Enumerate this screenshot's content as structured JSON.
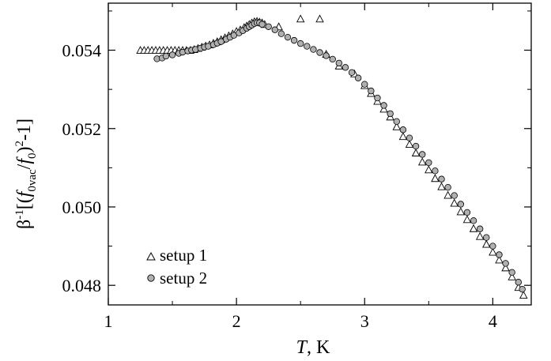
{
  "chart_data": {
    "type": "scatter",
    "xlabel": "T, K",
    "ylabel": "β-1[(f0vac/f0)2-1]",
    "xlim": [
      1.0,
      4.3
    ],
    "ylim": [
      0.0475,
      0.0552
    ],
    "xticks": [
      1,
      2,
      3,
      4
    ],
    "xtick_labels": [
      "1",
      "2",
      "3",
      "4"
    ],
    "yticks": [
      0.048,
      0.05,
      0.052,
      0.054
    ],
    "ytick_labels": [
      "0.048",
      "0.050",
      "0.052",
      "0.054"
    ],
    "grid": false,
    "legend_position": "lower-left",
    "series": [
      {
        "name": "setup 1",
        "marker": "triangle-open",
        "color": "#000000",
        "x": [
          1.25,
          1.28,
          1.31,
          1.34,
          1.37,
          1.4,
          1.43,
          1.46,
          1.49,
          1.52,
          1.55,
          1.58,
          1.61,
          1.64,
          1.67,
          1.7,
          1.73,
          1.76,
          1.79,
          1.82,
          1.85,
          1.88,
          1.91,
          1.94,
          1.97,
          2.0,
          2.03,
          2.06,
          2.08,
          2.1,
          2.12,
          2.14,
          2.16,
          2.18,
          2.2,
          2.22,
          2.33,
          2.5,
          2.65,
          2.7,
          2.8,
          2.92,
          3.0,
          3.05,
          3.1,
          3.15,
          3.2,
          3.25,
          3.3,
          3.35,
          3.4,
          3.45,
          3.5,
          3.55,
          3.6,
          3.65,
          3.7,
          3.75,
          3.8,
          3.85,
          3.9,
          3.95,
          4.0,
          4.05,
          4.1,
          4.15,
          4.2,
          4.24
        ],
        "y": [
          0.054,
          0.054,
          0.054,
          0.054,
          0.054,
          0.054,
          0.054,
          0.054,
          0.054,
          0.054,
          0.054,
          0.054,
          0.054,
          0.054,
          0.05402,
          0.05405,
          0.05408,
          0.05411,
          0.05414,
          0.05418,
          0.05422,
          0.05427,
          0.05432,
          0.05437,
          0.05442,
          0.05448,
          0.05452,
          0.05458,
          0.05462,
          0.05466,
          0.0547,
          0.05473,
          0.05474,
          0.05472,
          0.0547,
          0.05466,
          0.0546,
          0.0548,
          0.0548,
          0.0539,
          0.0536,
          0.0534,
          0.0531,
          0.0529,
          0.0527,
          0.0525,
          0.0523,
          0.05205,
          0.0518,
          0.0516,
          0.05138,
          0.05115,
          0.05095,
          0.05073,
          0.05052,
          0.0503,
          0.0501,
          0.04988,
          0.04968,
          0.04945,
          0.04925,
          0.04905,
          0.04885,
          0.04865,
          0.04845,
          0.04822,
          0.04795,
          0.04775
        ]
      },
      {
        "name": "setup 2",
        "marker": "circle-filled",
        "color": "#b0b0b0",
        "x": [
          1.38,
          1.42,
          1.45,
          1.5,
          1.55,
          1.58,
          1.62,
          1.65,
          1.68,
          1.72,
          1.75,
          1.78,
          1.82,
          1.85,
          1.88,
          1.92,
          1.95,
          1.98,
          2.02,
          2.05,
          2.08,
          2.1,
          2.12,
          2.14,
          2.16,
          2.18,
          2.2,
          2.25,
          2.3,
          2.35,
          2.4,
          2.45,
          2.5,
          2.55,
          2.6,
          2.65,
          2.7,
          2.75,
          2.8,
          2.85,
          2.9,
          2.95,
          3.0,
          3.05,
          3.1,
          3.15,
          3.2,
          3.25,
          3.3,
          3.35,
          3.4,
          3.45,
          3.5,
          3.55,
          3.6,
          3.65,
          3.7,
          3.75,
          3.8,
          3.85,
          3.9,
          3.95,
          4.0,
          4.05,
          4.1,
          4.15,
          4.2,
          4.23
        ],
        "y": [
          0.05378,
          0.0538,
          0.05385,
          0.05388,
          0.05392,
          0.05395,
          0.05398,
          0.054,
          0.05402,
          0.05405,
          0.05408,
          0.0541,
          0.05414,
          0.05418,
          0.05422,
          0.05428,
          0.05433,
          0.05438,
          0.05444,
          0.0545,
          0.05456,
          0.0546,
          0.05464,
          0.05468,
          0.0547,
          0.0547,
          0.05466,
          0.0546,
          0.05452,
          0.05442,
          0.05433,
          0.05425,
          0.05417,
          0.0541,
          0.05402,
          0.05394,
          0.05386,
          0.05377,
          0.05367,
          0.05356,
          0.05343,
          0.05329,
          0.05313,
          0.05296,
          0.05278,
          0.05259,
          0.05238,
          0.05218,
          0.05197,
          0.05176,
          0.05155,
          0.05134,
          0.05113,
          0.05092,
          0.05071,
          0.0505,
          0.05029,
          0.05007,
          0.04986,
          0.04965,
          0.04944,
          0.04922,
          0.049,
          0.04878,
          0.04856,
          0.04833,
          0.04808,
          0.0479
        ]
      }
    ]
  },
  "legend": {
    "items": [
      {
        "label": "setup 1",
        "marker": "triangle-open"
      },
      {
        "label": "setup 2",
        "marker": "circle-filled"
      }
    ]
  }
}
